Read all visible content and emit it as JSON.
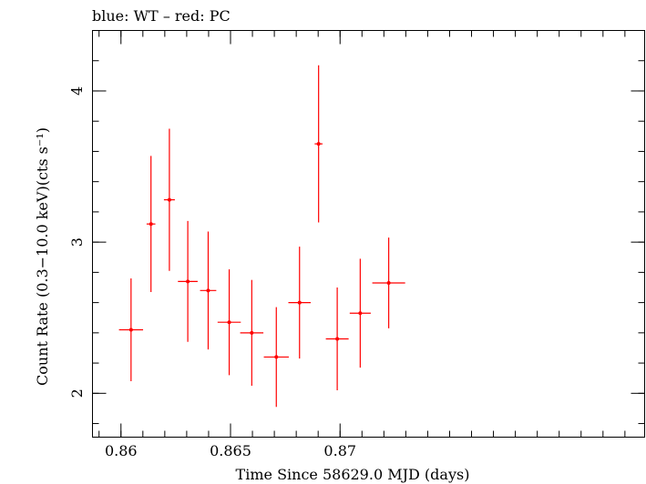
{
  "chart_data": {
    "type": "scatter",
    "title": "blue: WT – red: PC",
    "xlabel": "Time Since 58629.0 MJD (days)",
    "ylabel": "Count Rate (0.3−10.0 keV)(cts s⁻¹)",
    "xlim": [
      0.8587,
      0.8839
    ],
    "ylim": [
      1.71,
      4.4
    ],
    "x_ticks": [
      0.86,
      0.865,
      0.87
    ],
    "x_tick_labels": [
      "0.86",
      "0.865",
      "0.87"
    ],
    "y_ticks": [
      2,
      3,
      4
    ],
    "y_tick_labels": [
      "2",
      "3",
      "4"
    ],
    "grid": false,
    "series": [
      {
        "name": "PC",
        "color": "#ff0000",
        "points": [
          {
            "x": 0.86046,
            "y": 2.42,
            "xerr": 0.00055,
            "yerr_low": 0.34,
            "yerr_high": 0.34
          },
          {
            "x": 0.86137,
            "y": 3.12,
            "xerr": 0.0002,
            "yerr_low": 0.45,
            "yerr_high": 0.45
          },
          {
            "x": 0.86221,
            "y": 3.28,
            "xerr": 0.00025,
            "yerr_low": 0.47,
            "yerr_high": 0.47
          },
          {
            "x": 0.86305,
            "y": 2.74,
            "xerr": 0.00045,
            "yerr_low": 0.4,
            "yerr_high": 0.4
          },
          {
            "x": 0.86398,
            "y": 2.68,
            "xerr": 0.00037,
            "yerr_low": 0.39,
            "yerr_high": 0.39
          },
          {
            "x": 0.86494,
            "y": 2.47,
            "xerr": 0.00053,
            "yerr_low": 0.35,
            "yerr_high": 0.35
          },
          {
            "x": 0.86597,
            "y": 2.4,
            "xerr": 0.00053,
            "yerr_low": 0.35,
            "yerr_high": 0.35
          },
          {
            "x": 0.86709,
            "y": 2.24,
            "xerr": 0.00057,
            "yerr_low": 0.33,
            "yerr_high": 0.33
          },
          {
            "x": 0.86815,
            "y": 2.6,
            "xerr": 0.00051,
            "yerr_low": 0.37,
            "yerr_high": 0.37
          },
          {
            "x": 0.86902,
            "y": 3.65,
            "xerr": 0.00018,
            "yerr_low": 0.52,
            "yerr_high": 0.52
          },
          {
            "x": 0.86987,
            "y": 2.36,
            "xerr": 0.00052,
            "yerr_low": 0.34,
            "yerr_high": 0.34
          },
          {
            "x": 0.87092,
            "y": 2.53,
            "xerr": 0.00048,
            "yerr_low": 0.36,
            "yerr_high": 0.36
          },
          {
            "x": 0.87222,
            "y": 2.73,
            "xerr": 0.00075,
            "yerr_low": 0.3,
            "yerr_high": 0.3
          }
        ]
      }
    ]
  }
}
